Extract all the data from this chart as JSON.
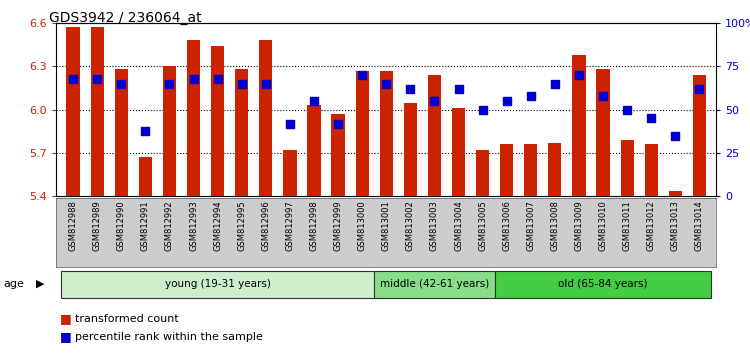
{
  "title": "GDS3942 / 236064_at",
  "samples": [
    "GSM812988",
    "GSM812989",
    "GSM812990",
    "GSM812991",
    "GSM812992",
    "GSM812993",
    "GSM812994",
    "GSM812995",
    "GSM812996",
    "GSM812997",
    "GSM812998",
    "GSM812999",
    "GSM813000",
    "GSM813001",
    "GSM813002",
    "GSM813003",
    "GSM813004",
    "GSM813005",
    "GSM813006",
    "GSM813007",
    "GSM813008",
    "GSM813009",
    "GSM813010",
    "GSM813011",
    "GSM813012",
    "GSM813013",
    "GSM813014"
  ],
  "transformed_count": [
    6.57,
    6.57,
    6.28,
    5.67,
    6.3,
    6.48,
    6.44,
    6.28,
    6.48,
    5.72,
    6.03,
    5.97,
    6.27,
    6.27,
    6.05,
    6.24,
    6.01,
    5.72,
    5.76,
    5.76,
    5.77,
    6.38,
    6.28,
    5.79,
    5.76,
    5.44,
    6.24
  ],
  "percentile_rank": [
    68,
    68,
    65,
    38,
    65,
    68,
    68,
    65,
    65,
    42,
    55,
    42,
    70,
    65,
    62,
    55,
    62,
    50,
    55,
    58,
    65,
    70,
    58,
    50,
    45,
    35,
    62
  ],
  "ylim_left": [
    5.4,
    6.6
  ],
  "ylim_right": [
    0,
    100
  ],
  "yticks_left": [
    5.4,
    5.7,
    6.0,
    6.3,
    6.6
  ],
  "yticks_right": [
    0,
    25,
    50,
    75,
    100
  ],
  "ytick_labels_right": [
    "0",
    "25",
    "50",
    "75",
    "100%"
  ],
  "bar_color": "#cc2200",
  "dot_color": "#0000cc",
  "bar_bottom": 5.4,
  "groups": [
    {
      "label": "young (19-31 years)",
      "start": 0,
      "end": 13,
      "color": "#cceecc"
    },
    {
      "label": "middle (42-61 years)",
      "start": 13,
      "end": 18,
      "color": "#88dd88"
    },
    {
      "label": "old (65-84 years)",
      "start": 18,
      "end": 27,
      "color": "#44cc44"
    }
  ],
  "age_label": "age",
  "legend_items": [
    {
      "color": "#cc2200",
      "label": "transformed count"
    },
    {
      "color": "#0000cc",
      "label": "percentile rank within the sample"
    }
  ],
  "background_color": "#ffffff",
  "tick_color_left": "#cc2200",
  "tick_color_right": "#0000cc",
  "sample_bg_color": "#cccccc",
  "group_border_color": "#333333"
}
